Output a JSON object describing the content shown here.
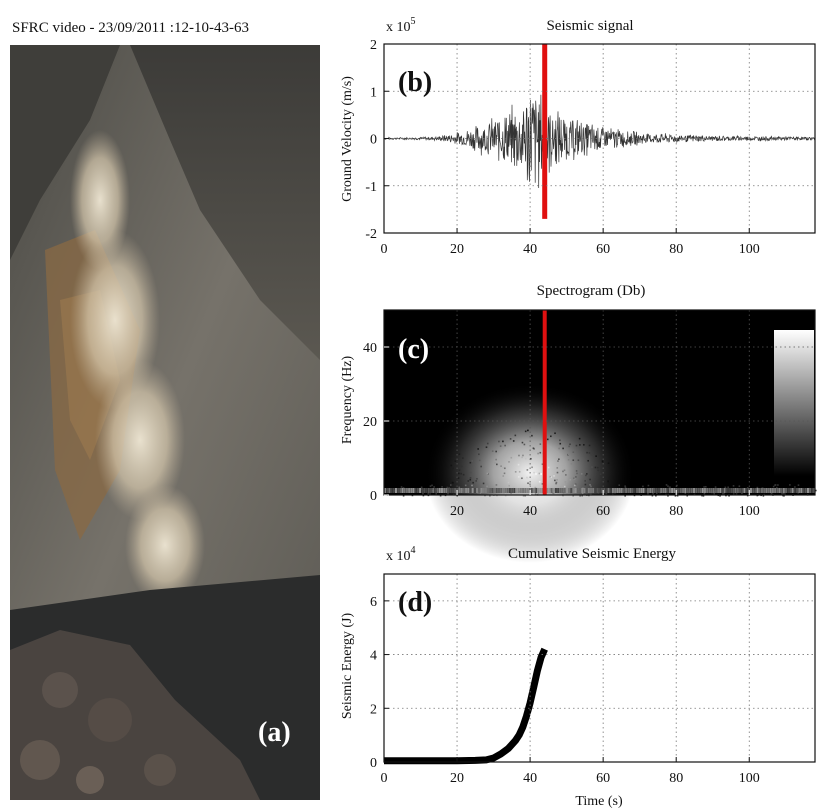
{
  "photo": {
    "caption": "SFRC video - 23/09/2011 :12-10-43-63",
    "panel_label": "(a)"
  },
  "colors": {
    "marker": "#e01010",
    "background": "#ffffff",
    "spectrogram_bg": "#000000"
  },
  "chart_data": [
    {
      "id": "seismic",
      "type": "line",
      "panel_label": "(b)",
      "title": "Seismic signal",
      "ylabel": "Ground Velocity (m/s)",
      "xlabel": "",
      "exponent_label": "x 10",
      "exponent": "5",
      "xlim": [
        0,
        118
      ],
      "ylim": [
        -2,
        2
      ],
      "xticks": [
        0,
        20,
        40,
        60,
        80,
        100
      ],
      "yticks": [
        -2,
        -1,
        0,
        1,
        2
      ],
      "grid": true,
      "marker_x": 44,
      "envelope": [
        [
          0,
          0.02
        ],
        [
          10,
          0.03
        ],
        [
          15,
          0.06
        ],
        [
          20,
          0.15
        ],
        [
          25,
          0.3
        ],
        [
          30,
          0.5
        ],
        [
          35,
          0.75
        ],
        [
          38,
          1.0
        ],
        [
          40,
          1.4
        ],
        [
          42,
          1.25
        ],
        [
          44,
          1.05
        ],
        [
          46,
          0.75
        ],
        [
          50,
          0.55
        ],
        [
          55,
          0.42
        ],
        [
          60,
          0.32
        ],
        [
          65,
          0.22
        ],
        [
          70,
          0.15
        ],
        [
          80,
          0.1
        ],
        [
          90,
          0.07
        ],
        [
          100,
          0.06
        ],
        [
          110,
          0.05
        ],
        [
          118,
          0.04
        ]
      ]
    },
    {
      "id": "spectrogram",
      "type": "heatmap",
      "panel_label": "(c)",
      "title": "Spectrogram (Db)",
      "ylabel": "Frequency (Hz)",
      "xlabel": "",
      "xlim": [
        0,
        118
      ],
      "ylim": [
        0,
        50
      ],
      "xticks": [
        20,
        40,
        60,
        80,
        100
      ],
      "yticks": [
        0,
        20,
        40
      ],
      "grid": true,
      "marker_x": 44,
      "energy_center": {
        "x": 40,
        "y": 6
      },
      "colorbar": "grayscale"
    },
    {
      "id": "energy",
      "type": "line",
      "panel_label": "(d)",
      "title": "Cumulative Seismic Energy",
      "ylabel": "Seismic Energy (J)",
      "xlabel": "Time (s)",
      "exponent_label": "x 10",
      "exponent": "4",
      "xlim": [
        0,
        118
      ],
      "ylim": [
        0,
        7
      ],
      "xticks": [
        0,
        20,
        40,
        60,
        80,
        100
      ],
      "yticks": [
        0,
        2,
        4,
        6
      ],
      "grid": true,
      "x": [
        0,
        5,
        10,
        15,
        20,
        25,
        28,
        30,
        32,
        34,
        36,
        37,
        38,
        39,
        40,
        41,
        42,
        43,
        44
      ],
      "y": [
        0.05,
        0.05,
        0.05,
        0.05,
        0.05,
        0.06,
        0.08,
        0.15,
        0.3,
        0.5,
        0.8,
        1.0,
        1.3,
        1.7,
        2.2,
        2.8,
        3.4,
        3.9,
        4.2
      ]
    }
  ]
}
